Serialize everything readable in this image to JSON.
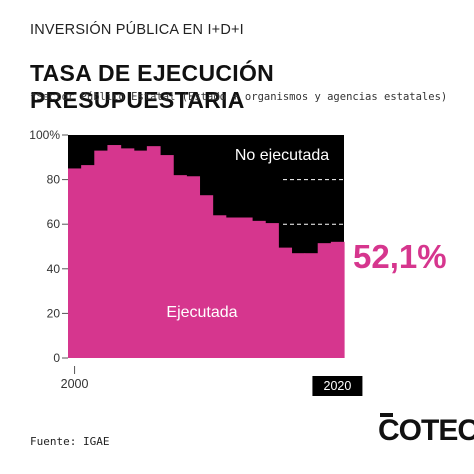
{
  "header": {
    "supertitle": "INVERSIÓN PÚBLICA EN I+D+I",
    "title": "TASA DE EJECUCIÓN PRESUPUESTARIA",
    "subtitle": "*Sector Público Estatal (Estado + organismos y agencias estatales)"
  },
  "footer": {
    "source": "Fuente: IGAE",
    "logo": "COTEC"
  },
  "colors": {
    "executed": "#d6368e",
    "not_executed": "#000000",
    "highlight_text": "#d6368e",
    "axis": "#555555"
  },
  "chart_data": {
    "type": "area",
    "x": [
      2000,
      2001,
      2002,
      2003,
      2004,
      2005,
      2006,
      2007,
      2008,
      2009,
      2010,
      2011,
      2012,
      2013,
      2014,
      2015,
      2016,
      2017,
      2018,
      2019,
      2020
    ],
    "series": [
      {
        "name": "Ejecutada",
        "values": [
          85,
          86.5,
          93,
          95.5,
          94,
          93,
          95,
          91,
          82,
          81.5,
          73,
          64,
          63,
          63,
          61.5,
          60.5,
          49.5,
          47,
          47,
          51.5,
          52.1
        ]
      },
      {
        "name": "No ejecutada",
        "values": [
          15,
          13.5,
          7,
          4.5,
          6,
          7,
          5,
          9,
          18,
          18.5,
          27,
          36,
          37,
          37,
          38.5,
          39.5,
          50.5,
          53,
          53,
          48.5,
          47.9
        ]
      }
    ],
    "ylim": [
      0,
      100
    ],
    "yticks": [
      "0",
      "20",
      "40",
      "60",
      "80",
      "100%"
    ],
    "xtick_labels": [
      "2000",
      "2020"
    ],
    "reference_lines": [
      80,
      60
    ],
    "highlight_value": "52,1%",
    "grid": false
  }
}
